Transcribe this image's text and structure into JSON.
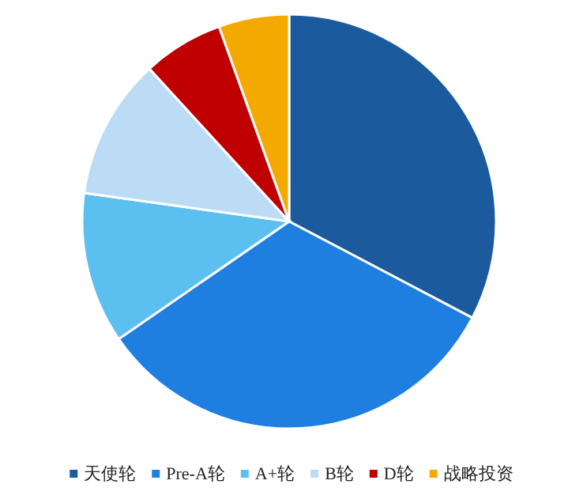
{
  "chart_data": {
    "type": "pie",
    "categories": [
      "天使轮",
      "Pre-A轮",
      "A+轮",
      "B轮",
      "D轮",
      "战略投资"
    ],
    "values": [
      32.7,
      32.7,
      11.8,
      11.0,
      6.3,
      5.5
    ],
    "colors": [
      "#1b5a9c",
      "#1f7fe0",
      "#5bbff0",
      "#bcdcf6",
      "#c00000",
      "#f4a900"
    ],
    "legend": "bottom"
  }
}
